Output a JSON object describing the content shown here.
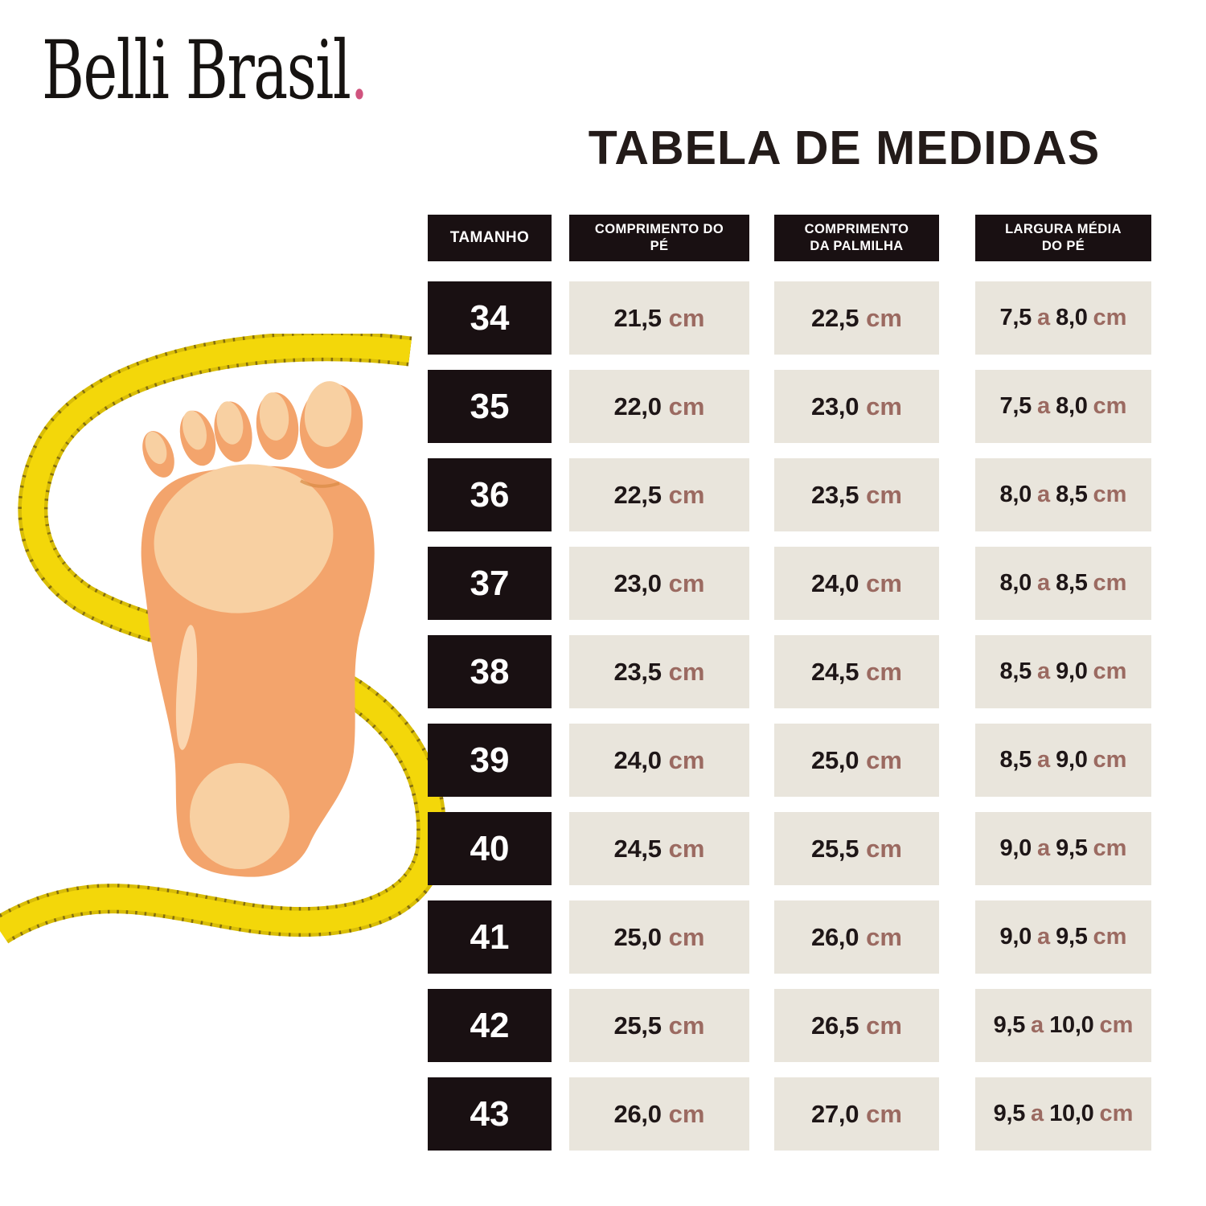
{
  "brand": {
    "name": "Belli Brasil",
    "dot": "."
  },
  "title": "TABELA DE MEDIDAS",
  "table": {
    "headers": [
      "TAMANHO",
      "COMPRIMENTO DO PÉ",
      "COMPRIMENTO DA PALMILHA",
      "LARGURA MÉDIA DO PÉ"
    ],
    "unit": "cm",
    "range_separator": "a",
    "rows": [
      {
        "size": "34",
        "foot_length": "21,5",
        "insole_length": "22,5",
        "width_min": "7,5",
        "width_max": "8,0"
      },
      {
        "size": "35",
        "foot_length": "22,0",
        "insole_length": "23,0",
        "width_min": "7,5",
        "width_max": "8,0"
      },
      {
        "size": "36",
        "foot_length": "22,5",
        "insole_length": "23,5",
        "width_min": "8,0",
        "width_max": "8,5"
      },
      {
        "size": "37",
        "foot_length": "23,0",
        "insole_length": "24,0",
        "width_min": "8,0",
        "width_max": "8,5"
      },
      {
        "size": "38",
        "foot_length": "23,5",
        "insole_length": "24,5",
        "width_min": "8,5",
        "width_max": "9,0"
      },
      {
        "size": "39",
        "foot_length": "24,0",
        "insole_length": "25,0",
        "width_min": "8,5",
        "width_max": "9,0"
      },
      {
        "size": "40",
        "foot_length": "24,5",
        "insole_length": "25,5",
        "width_min": "9,0",
        "width_max": "9,5"
      },
      {
        "size": "41",
        "foot_length": "25,0",
        "insole_length": "26,0",
        "width_min": "9,0",
        "width_max": "9,5"
      },
      {
        "size": "42",
        "foot_length": "25,5",
        "insole_length": "26,5",
        "width_min": "9,5",
        "width_max": "10,0"
      },
      {
        "size": "43",
        "foot_length": "26,0",
        "insole_length": "27,0",
        "width_min": "9,5",
        "width_max": "10,0"
      }
    ]
  },
  "illustration": {
    "label": "foot with measuring tape"
  },
  "colors": {
    "ink": "#191012",
    "cell": "#e9e5dc",
    "text": "#1e1617",
    "accent": "#9b6a61",
    "brand-dot": "#d0537e",
    "tape": "#f3d70a",
    "tape-edge": "#d9bd06",
    "tape-tick": "#7a650f",
    "skin": "#f3a46c",
    "skin-light": "#f8d0a2",
    "skin-lighter": "#fbdfbc"
  }
}
